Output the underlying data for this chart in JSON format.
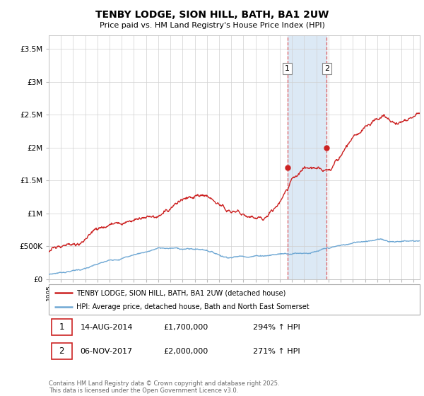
{
  "title": "TENBY LODGE, SION HILL, BATH, BA1 2UW",
  "subtitle": "Price paid vs. HM Land Registry's House Price Index (HPI)",
  "ylim": [
    0,
    3700000
  ],
  "yticks": [
    0,
    500000,
    1000000,
    1500000,
    2000000,
    2500000,
    3000000,
    3500000
  ],
  "ytick_labels": [
    "£0",
    "£500K",
    "£1M",
    "£1.5M",
    "£2M",
    "£2.5M",
    "£3M",
    "£3.5M"
  ],
  "xlim_start": 1995,
  "xlim_end": 2025.5,
  "sale1_date": 2014.619,
  "sale1_price": 1700000,
  "sale2_date": 2017.846,
  "sale2_price": 2000000,
  "hpi_color": "#6fa8d4",
  "house_color": "#cc2222",
  "shaded_color": "#dce9f5",
  "dashed_color": "#dd4444",
  "legend_house": "TENBY LODGE, SION HILL, BATH, BA1 2UW (detached house)",
  "legend_hpi": "HPI: Average price, detached house, Bath and North East Somerset",
  "footer": "Contains HM Land Registry data © Crown copyright and database right 2025.\nThis data is licensed under the Open Government Licence v3.0."
}
